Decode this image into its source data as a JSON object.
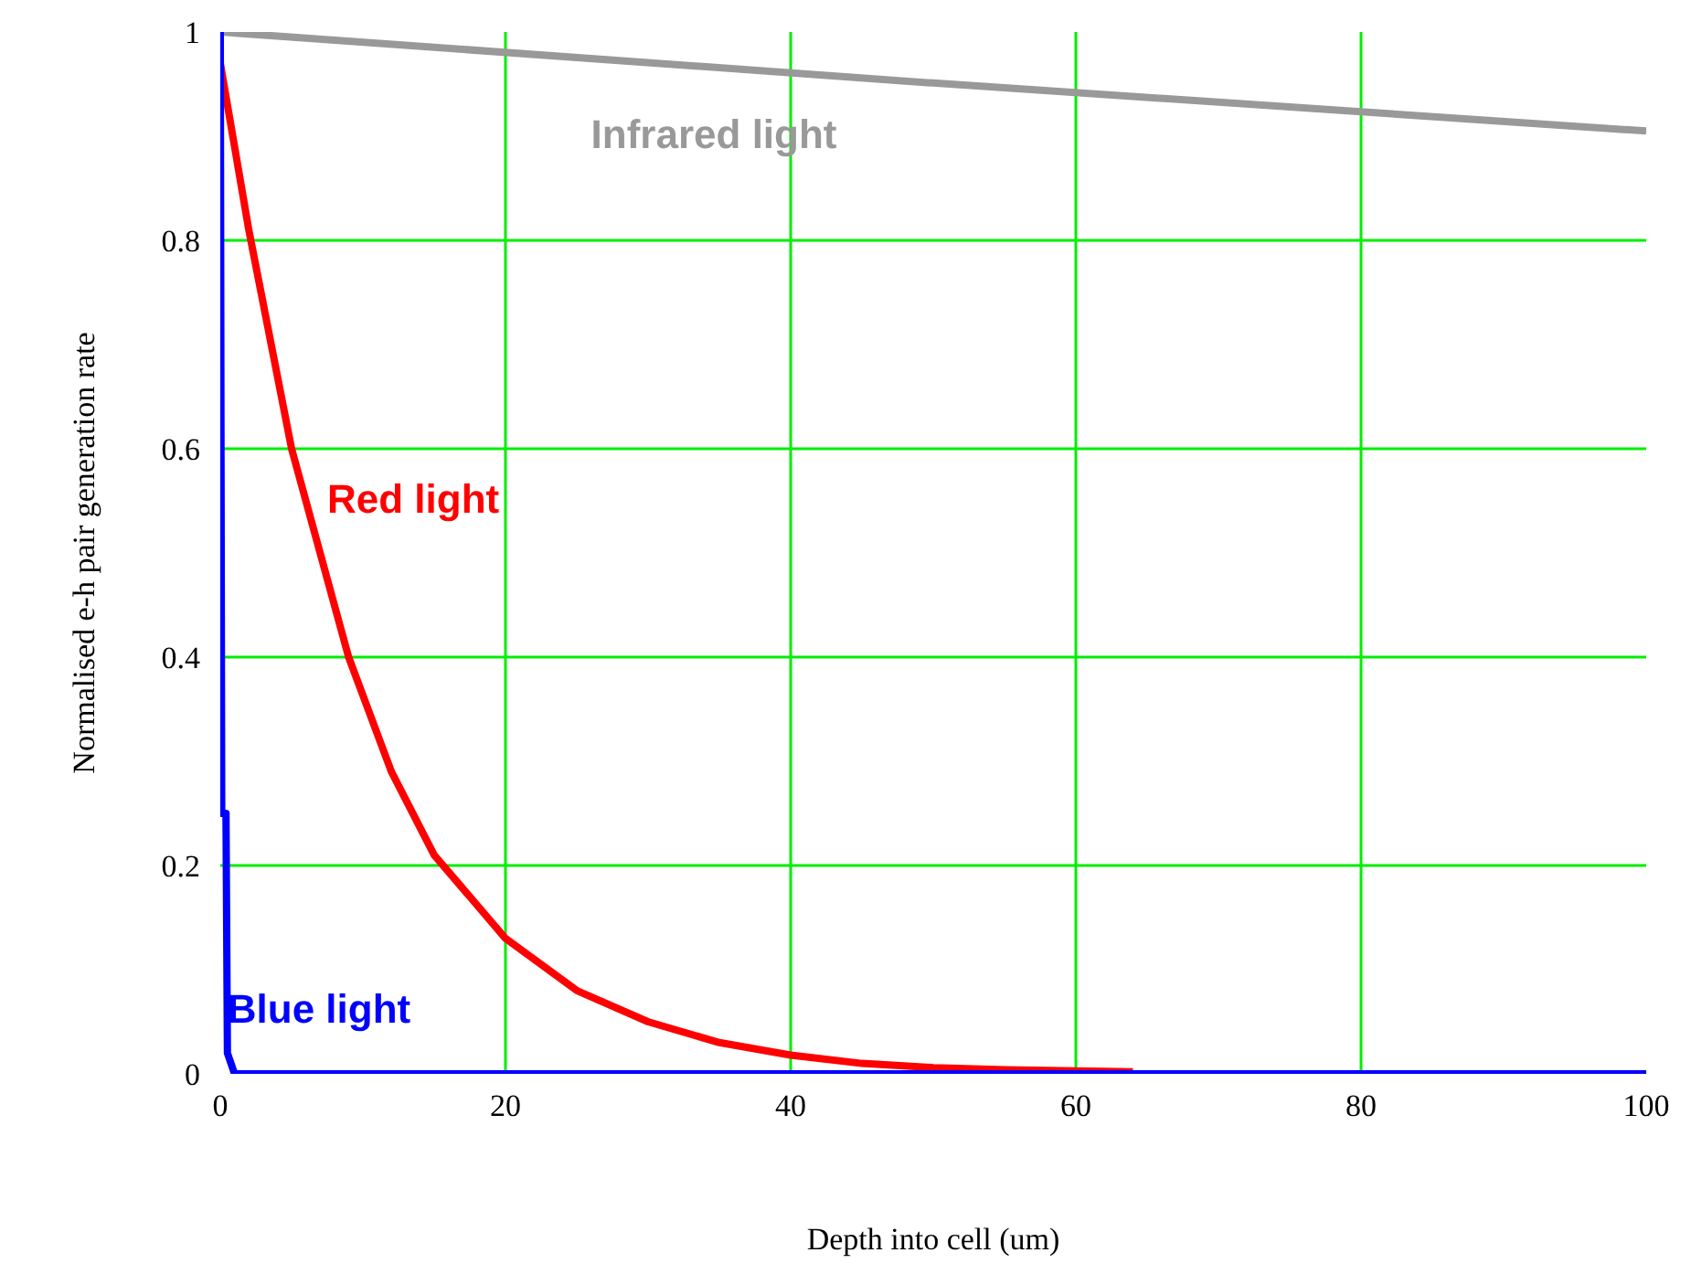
{
  "chart_data": {
    "type": "line",
    "xlabel": "Depth into cell (um)",
    "ylabel": "Normalised e-h pair generation rate",
    "xlim": [
      0,
      100
    ],
    "ylim": [
      0,
      1
    ],
    "xticks": [
      0,
      20,
      40,
      60,
      80,
      100
    ],
    "yticks": [
      0,
      0.2,
      0.4,
      0.6,
      0.8,
      1
    ],
    "grid": true,
    "line_style": "solid",
    "series": [
      {
        "name": "Infrared light",
        "color": "#999999",
        "x": [
          0,
          50,
          100
        ],
        "values": [
          1,
          0.951,
          0.905
        ]
      },
      {
        "name": "Red light",
        "color": "#ff0000",
        "x": [
          0,
          2,
          5,
          9,
          12,
          15,
          20,
          25,
          30,
          35,
          40,
          45,
          50,
          55,
          64
        ],
        "values": [
          0.97,
          0.81,
          0.6,
          0.4,
          0.29,
          0.21,
          0.13,
          0.08,
          0.05,
          0.03,
          0.018,
          0.01,
          0.006,
          0.004,
          0.002
        ]
      },
      {
        "name": "Blue light",
        "color": "#0000ff",
        "x": [
          0,
          0.05,
          0.1,
          0.4,
          0.5,
          1,
          100
        ],
        "values": [
          1,
          0.6,
          0.25,
          0.25,
          0.02,
          0,
          0
        ]
      }
    ]
  }
}
